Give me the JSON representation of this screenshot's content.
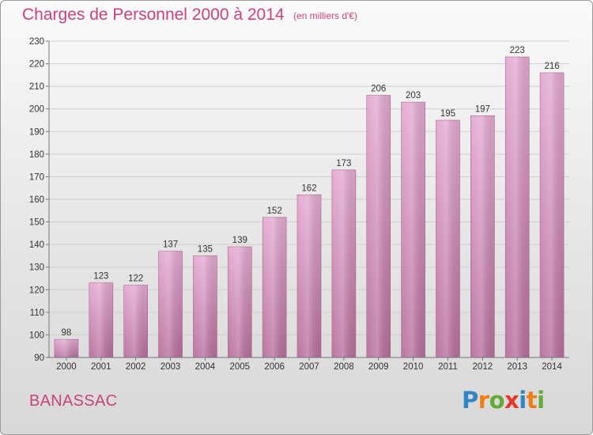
{
  "header": {
    "title": "Charges de Personnel 2000 à 2014",
    "subtitle": "(en milliers d'€)"
  },
  "footer": {
    "commune": "BANASSAC",
    "logo_text": "Proxiti"
  },
  "colors": {
    "title": "#c8427e",
    "bar_top": "#e4a9d0",
    "bar_bottom": "#b66e9a",
    "axis": "#777777",
    "grid": "#cfcfcf",
    "text": "#333333",
    "logo_letters": [
      "#2f85c6",
      "#f07d12",
      "#63aa35",
      "#e7352a",
      "#2f85c6",
      "#f07d12",
      "#63aa35"
    ]
  },
  "chart_data": {
    "type": "bar",
    "categories": [
      "2000",
      "2001",
      "2002",
      "2003",
      "2004",
      "2005",
      "2006",
      "2007",
      "2008",
      "2009",
      "2010",
      "2011",
      "2012",
      "2013",
      "2014"
    ],
    "values": [
      98,
      123,
      122,
      137,
      135,
      139,
      152,
      162,
      173,
      206,
      203,
      195,
      197,
      223,
      216
    ],
    "ylim": [
      90,
      230
    ],
    "yticks": [
      90,
      100,
      110,
      120,
      130,
      140,
      150,
      160,
      170,
      180,
      190,
      200,
      210,
      220,
      230
    ],
    "grid": true,
    "legend": "none",
    "title": "Charges de Personnel 2000 à 2014",
    "ylabel": "",
    "xlabel": ""
  }
}
